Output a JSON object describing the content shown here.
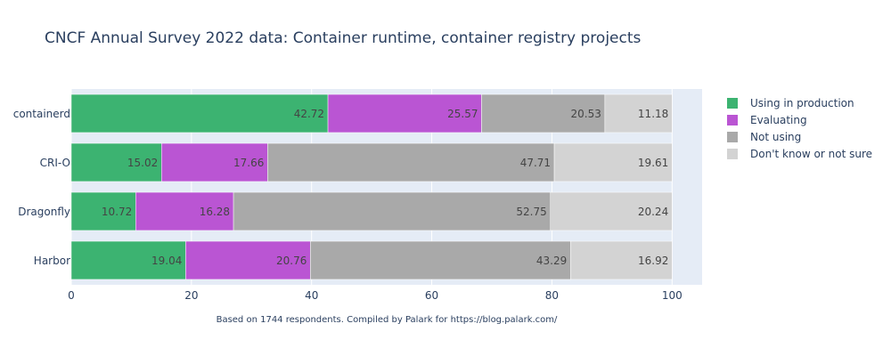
{
  "chart_data": {
    "type": "bar",
    "orientation": "horizontal",
    "stacked": true,
    "title": "CNCF Annual Survey 2022 data: Container runtime, container registry projects",
    "categories": [
      "containerd",
      "CRI-O",
      "Dragonfly",
      "Harbor"
    ],
    "series": [
      {
        "name": "Using in production",
        "color": "#3cb371",
        "values": [
          42.72,
          15.02,
          10.72,
          19.04
        ]
      },
      {
        "name": "Evaluating",
        "color": "#ba55d3",
        "values": [
          25.57,
          17.66,
          16.28,
          20.76
        ]
      },
      {
        "name": "Not using",
        "color": "#a9a9a9",
        "values": [
          20.53,
          47.71,
          52.75,
          43.29
        ]
      },
      {
        "name": "Don't know or not sure",
        "color": "#d3d3d3",
        "values": [
          11.18,
          19.61,
          20.24,
          16.92
        ]
      }
    ],
    "xlim": [
      0,
      105
    ],
    "xticks": [
      0,
      20,
      40,
      60,
      80,
      100
    ],
    "xlabel": "",
    "ylabel": "",
    "grid": true,
    "legend_position": "right",
    "plot_background": "#e5ecf6",
    "footnote": "Based on 1744 respondents. Compiled by Palark for https://blog.palark.com/"
  }
}
